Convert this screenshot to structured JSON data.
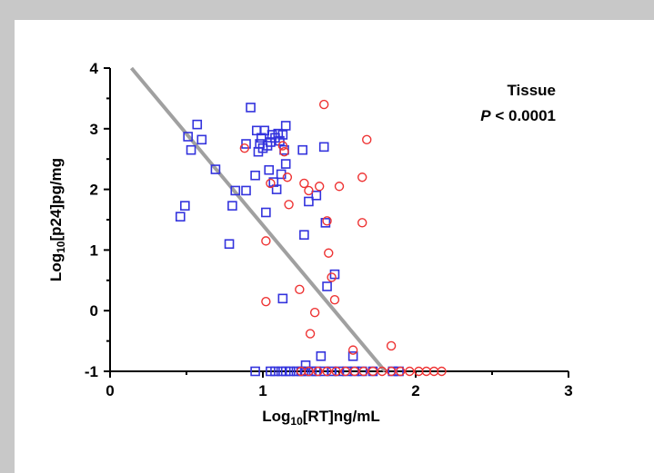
{
  "chart_data": {
    "type": "scatter",
    "xlabel": {
      "base": "Log",
      "sub": "10",
      "rest": "[RT]ng/mL"
    },
    "ylabel": {
      "base": "Log",
      "sub": "10",
      "rest": "[p24]pg/mg"
    },
    "annotation": {
      "line1": "Tissue",
      "p_symbol": "P",
      "p_rest": " < 0.0001"
    },
    "xlim": [
      0,
      3
    ],
    "ylim": [
      -1,
      4
    ],
    "xticks": [
      "0",
      "1",
      "2",
      "3"
    ],
    "yticks": [
      "-1",
      "0",
      "1",
      "2",
      "3",
      "4"
    ],
    "grid": false,
    "colors": {
      "blue_series": "#3333dd",
      "red_series": "#ee3333",
      "fit_line": "#a0a0a0"
    },
    "fit_line": {
      "x": [
        0.14,
        1.8
      ],
      "y": [
        4.0,
        -1.0
      ]
    },
    "series": [
      {
        "marker": "square",
        "color": "#3333dd",
        "points": [
          [
            0.46,
            1.55
          ],
          [
            0.49,
            1.73
          ],
          [
            0.51,
            2.87
          ],
          [
            0.53,
            2.65
          ],
          [
            0.57,
            3.07
          ],
          [
            0.6,
            2.82
          ],
          [
            0.69,
            2.33
          ],
          [
            0.78,
            1.1
          ],
          [
            0.8,
            1.73
          ],
          [
            0.82,
            1.98
          ],
          [
            0.89,
            1.98
          ],
          [
            0.89,
            2.75
          ],
          [
            0.92,
            3.35
          ],
          [
            0.95,
            2.23
          ],
          [
            0.96,
            2.97
          ],
          [
            0.97,
            2.62
          ],
          [
            0.98,
            2.75
          ],
          [
            0.99,
            2.85
          ],
          [
            1.0,
            2.68
          ],
          [
            1.01,
            2.97
          ],
          [
            1.02,
            1.62
          ],
          [
            1.03,
            2.72
          ],
          [
            1.04,
            2.32
          ],
          [
            1.05,
            2.78
          ],
          [
            1.06,
            2.9
          ],
          [
            1.07,
            2.12
          ],
          [
            1.08,
            2.85
          ],
          [
            1.09,
            2.0
          ],
          [
            1.1,
            2.92
          ],
          [
            1.11,
            2.8
          ],
          [
            1.12,
            2.25
          ],
          [
            1.13,
            2.9
          ],
          [
            1.13,
            0.2
          ],
          [
            1.14,
            2.65
          ],
          [
            1.15,
            2.42
          ],
          [
            1.15,
            3.05
          ],
          [
            1.26,
            2.65
          ],
          [
            1.27,
            1.25
          ],
          [
            1.3,
            1.8
          ],
          [
            1.35,
            1.9
          ],
          [
            1.4,
            2.7
          ],
          [
            1.41,
            1.45
          ],
          [
            1.42,
            0.4
          ],
          [
            1.47,
            0.6
          ],
          [
            1.59,
            -0.75
          ],
          [
            1.38,
            -0.75
          ],
          [
            1.28,
            -0.9
          ],
          [
            0.95,
            -1.0
          ],
          [
            1.05,
            -1.0
          ],
          [
            1.08,
            -1.0
          ],
          [
            1.12,
            -1.0
          ],
          [
            1.15,
            -1.0
          ],
          [
            1.18,
            -1.0
          ],
          [
            1.22,
            -1.0
          ],
          [
            1.25,
            -1.0
          ],
          [
            1.28,
            -1.0
          ],
          [
            1.32,
            -1.0
          ],
          [
            1.35,
            -1.0
          ],
          [
            1.4,
            -1.0
          ],
          [
            1.45,
            -1.0
          ],
          [
            1.5,
            -1.0
          ],
          [
            1.55,
            -1.0
          ],
          [
            1.6,
            -1.0
          ],
          [
            1.65,
            -1.0
          ],
          [
            1.72,
            -1.0
          ],
          [
            1.85,
            -1.0
          ],
          [
            1.89,
            -1.0
          ]
        ]
      },
      {
        "marker": "circle",
        "color": "#ee3333",
        "points": [
          [
            0.88,
            2.68
          ],
          [
            1.02,
            1.15
          ],
          [
            1.02,
            0.15
          ],
          [
            1.05,
            2.1
          ],
          [
            1.13,
            2.72
          ],
          [
            1.14,
            2.62
          ],
          [
            1.16,
            2.2
          ],
          [
            1.17,
            1.75
          ],
          [
            1.24,
            0.35
          ],
          [
            1.27,
            2.1
          ],
          [
            1.3,
            1.98
          ],
          [
            1.31,
            -0.38
          ],
          [
            1.34,
            -0.03
          ],
          [
            1.37,
            2.05
          ],
          [
            1.4,
            3.4
          ],
          [
            1.42,
            1.48
          ],
          [
            1.43,
            0.95
          ],
          [
            1.45,
            0.55
          ],
          [
            1.47,
            0.18
          ],
          [
            1.5,
            2.05
          ],
          [
            1.59,
            -0.65
          ],
          [
            1.65,
            2.2
          ],
          [
            1.65,
            1.45
          ],
          [
            1.68,
            2.82
          ],
          [
            1.84,
            -0.58
          ],
          [
            1.25,
            -1.0
          ],
          [
            1.3,
            -1.0
          ],
          [
            1.36,
            -1.0
          ],
          [
            1.42,
            -1.0
          ],
          [
            1.48,
            -1.0
          ],
          [
            1.54,
            -1.0
          ],
          [
            1.6,
            -1.0
          ],
          [
            1.66,
            -1.0
          ],
          [
            1.72,
            -1.0
          ],
          [
            1.78,
            -1.0
          ],
          [
            1.84,
            -1.0
          ],
          [
            1.9,
            -1.0
          ],
          [
            1.96,
            -1.0
          ],
          [
            2.02,
            -1.0
          ],
          [
            2.07,
            -1.0
          ],
          [
            2.12,
            -1.0
          ],
          [
            2.17,
            -1.0
          ]
        ]
      }
    ]
  }
}
